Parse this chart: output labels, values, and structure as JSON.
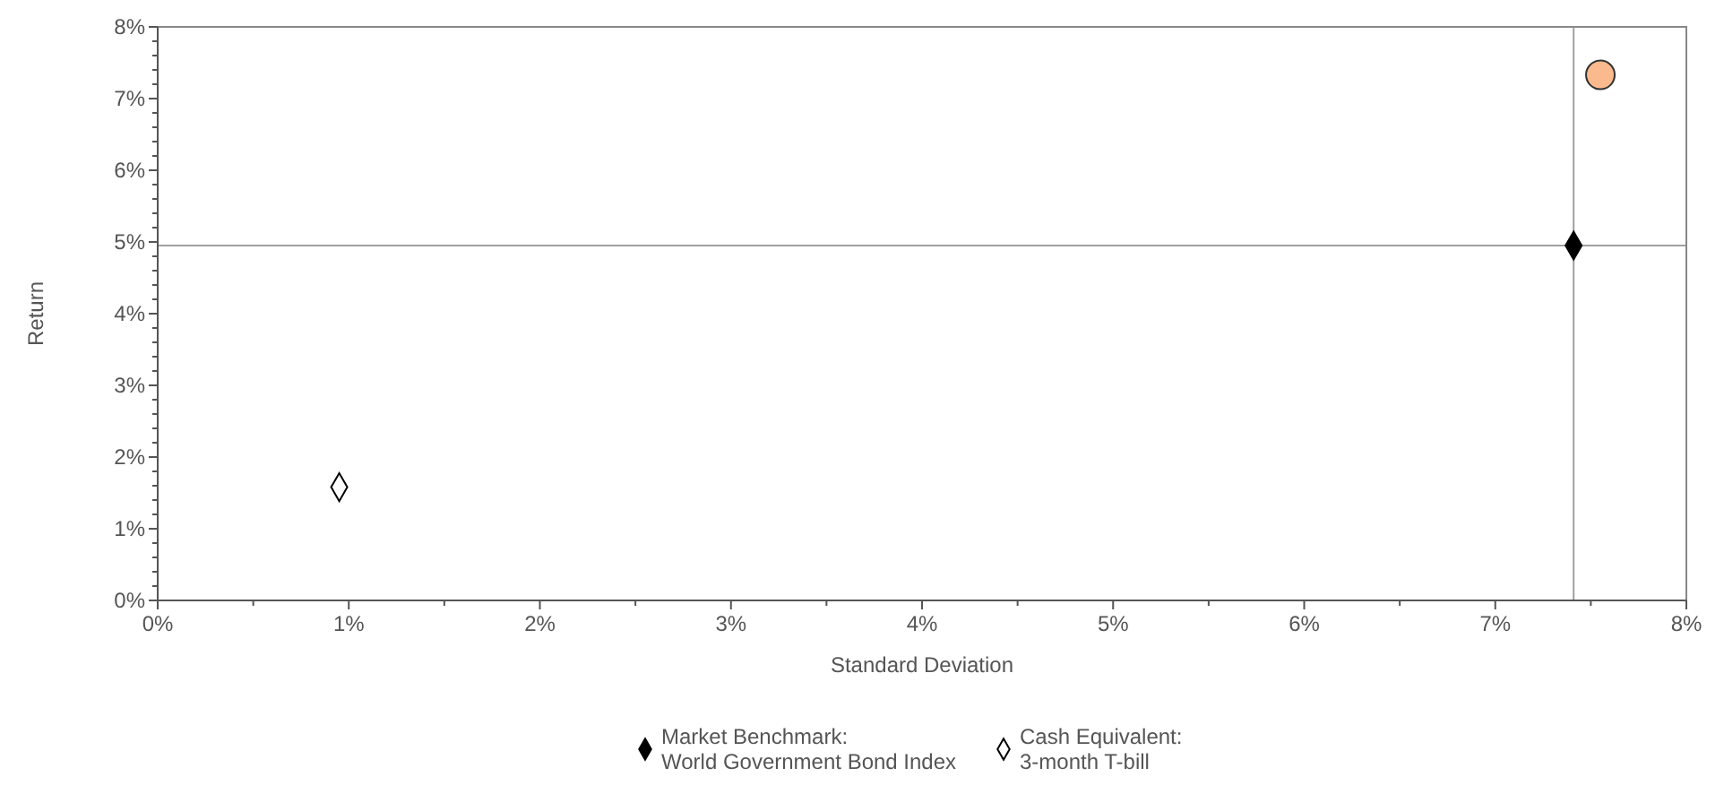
{
  "chart_data": {
    "type": "scatter",
    "xlabel": "Standard Deviation",
    "ylabel": "Return",
    "xlim": [
      0,
      8
    ],
    "ylim": [
      0,
      8
    ],
    "xticks": [
      {
        "value": 0,
        "label": "0%"
      },
      {
        "value": 0.5,
        "label": null
      },
      {
        "value": 1,
        "label": "1%"
      },
      {
        "value": 1.5,
        "label": null
      },
      {
        "value": 2,
        "label": "2%"
      },
      {
        "value": 2.5,
        "label": null
      },
      {
        "value": 3,
        "label": "3%"
      },
      {
        "value": 3.5,
        "label": null
      },
      {
        "value": 4,
        "label": "4%"
      },
      {
        "value": 4.5,
        "label": null
      },
      {
        "value": 5,
        "label": "5%"
      },
      {
        "value": 5.5,
        "label": null
      },
      {
        "value": 6,
        "label": "6%"
      },
      {
        "value": 6.5,
        "label": null
      },
      {
        "value": 7,
        "label": "7%"
      },
      {
        "value": 7.5,
        "label": null
      },
      {
        "value": 8,
        "label": "8%"
      }
    ],
    "yticks": [
      {
        "value": 0,
        "label": "0%"
      },
      {
        "value": 0.2,
        "label": null
      },
      {
        "value": 0.4,
        "label": null
      },
      {
        "value": 0.6,
        "label": null
      },
      {
        "value": 0.8,
        "label": null
      },
      {
        "value": 1,
        "label": "1%"
      },
      {
        "value": 1.2,
        "label": null
      },
      {
        "value": 1.4,
        "label": null
      },
      {
        "value": 1.6,
        "label": null
      },
      {
        "value": 1.8,
        "label": null
      },
      {
        "value": 2,
        "label": "2%"
      },
      {
        "value": 2.2,
        "label": null
      },
      {
        "value": 2.4,
        "label": null
      },
      {
        "value": 2.6,
        "label": null
      },
      {
        "value": 2.8,
        "label": null
      },
      {
        "value": 3,
        "label": "3%"
      },
      {
        "value": 3.2,
        "label": null
      },
      {
        "value": 3.4,
        "label": null
      },
      {
        "value": 3.6,
        "label": null
      },
      {
        "value": 3.8,
        "label": null
      },
      {
        "value": 4,
        "label": "4%"
      },
      {
        "value": 4.2,
        "label": null
      },
      {
        "value": 4.4,
        "label": null
      },
      {
        "value": 4.6,
        "label": null
      },
      {
        "value": 4.8,
        "label": null
      },
      {
        "value": 5,
        "label": "5%"
      },
      {
        "value": 5.2,
        "label": null
      },
      {
        "value": 5.4,
        "label": null
      },
      {
        "value": 5.6,
        "label": null
      },
      {
        "value": 5.8,
        "label": null
      },
      {
        "value": 6,
        "label": "6%"
      },
      {
        "value": 6.2,
        "label": null
      },
      {
        "value": 6.4,
        "label": null
      },
      {
        "value": 6.6,
        "label": null
      },
      {
        "value": 6.8,
        "label": null
      },
      {
        "value": 7,
        "label": "7%"
      },
      {
        "value": 7.2,
        "label": null
      },
      {
        "value": 7.4,
        "label": null
      },
      {
        "value": 7.6,
        "label": null
      },
      {
        "value": 7.8,
        "label": null
      },
      {
        "value": 8,
        "label": "8%"
      }
    ],
    "grid": false,
    "legend": "bottom",
    "ref_lines": [
      {
        "axis": "x",
        "value": 7.41,
        "color": "#a0a0a0"
      },
      {
        "axis": "y",
        "value": 4.95,
        "color": "#a0a0a0"
      }
    ],
    "series": [
      {
        "color": "#fbb98e",
        "marker": "circle",
        "x": [
          7.55
        ],
        "values": [
          7.33
        ]
      },
      {
        "name": "Market Benchmark:\nWorld Government Bond Index",
        "color": "#000000",
        "marker": "diamond",
        "x": [
          7.41
        ],
        "values": [
          4.95
        ]
      },
      {
        "name": "Cash Equivalent:\n3-month T-bill",
        "color": "#ffffff",
        "marker": "diamond",
        "x": [
          0.95
        ],
        "values": [
          1.58
        ]
      }
    ]
  }
}
